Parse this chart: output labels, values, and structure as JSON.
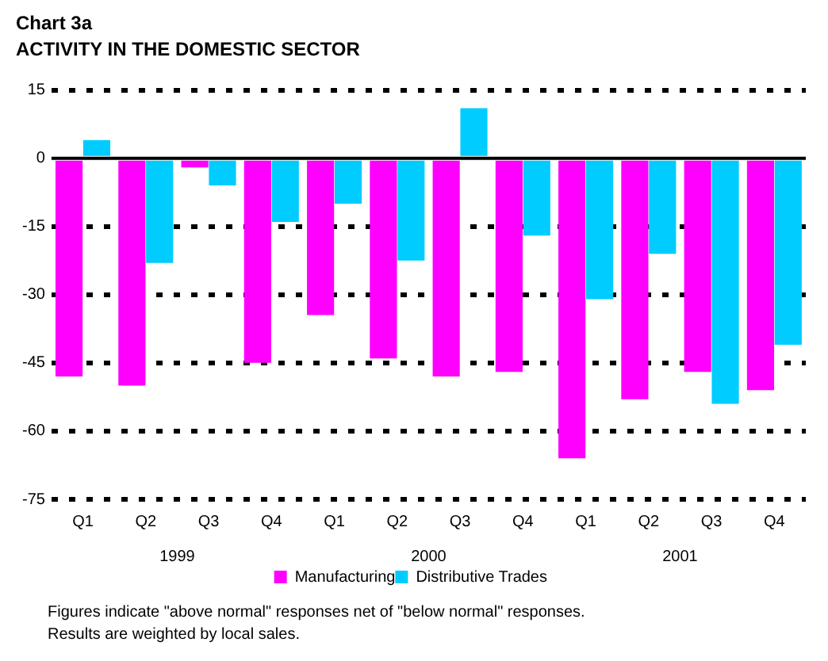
{
  "chart_data": {
    "type": "bar",
    "title": "Chart 3a",
    "subtitle": "ACTIVITY IN THE DOMESTIC SECTOR",
    "categories": [
      "Q1",
      "Q2",
      "Q3",
      "Q4",
      "Q1",
      "Q2",
      "Q3",
      "Q4",
      "Q1",
      "Q2",
      "Q3",
      "Q4"
    ],
    "series": [
      {
        "name": "Manufacturing",
        "color": "#ff00ff",
        "values": [
          -48,
          -50,
          -2,
          -45,
          -34.5,
          -44,
          -48,
          -47,
          -66,
          -53,
          -47,
          -51
        ]
      },
      {
        "name": "Distributive Trades",
        "color": "#00ccff",
        "values": [
          4,
          -23,
          -6,
          -14,
          -10,
          -22.5,
          11,
          -17,
          -31,
          -21,
          -54,
          -41
        ]
      }
    ],
    "ylim": [
      -75,
      15
    ],
    "yticks": [
      -75,
      -60,
      -45,
      -30,
      -15,
      0,
      15
    ],
    "grid": "y",
    "legend": "bottom",
    "annotations": [
      "1999",
      "2000",
      "2001",
      "Figures indicate \"above normal\" responses net of \"below normal\" responses.",
      "Results are weighted by local sales."
    ]
  }
}
